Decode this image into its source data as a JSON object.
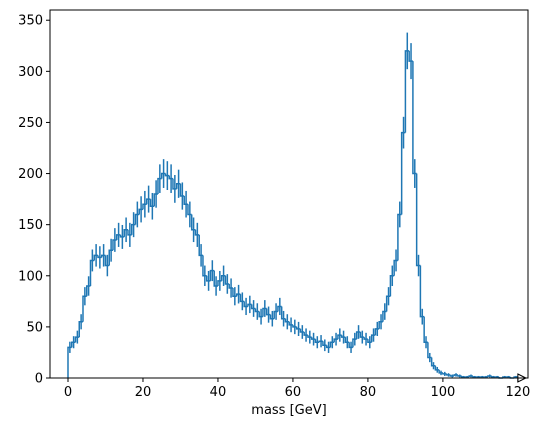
{
  "chart_data": {
    "type": "histogram",
    "xlabel": "mass [GeV]",
    "color": "#1f77b4",
    "bins": [
      0,
      1,
      2,
      3,
      4,
      5,
      6,
      7,
      8,
      9,
      10,
      11,
      12,
      13,
      14,
      15,
      16,
      17,
      18,
      19,
      20,
      21,
      22,
      23,
      24,
      25,
      26,
      27,
      28,
      29,
      30,
      31,
      32,
      33,
      34,
      35,
      36,
      37,
      38,
      39,
      40,
      41,
      42,
      43,
      44,
      45,
      46,
      47,
      48,
      49,
      50,
      51,
      52,
      53,
      54,
      55,
      56,
      57,
      58,
      59,
      60,
      61,
      62,
      63,
      64,
      65,
      66,
      67,
      68,
      69,
      70,
      71,
      72,
      73,
      74,
      75,
      76,
      77,
      78,
      79,
      80,
      81,
      82,
      83,
      84,
      85,
      86,
      87,
      88,
      89,
      90,
      91,
      92,
      93,
      94,
      95,
      96,
      97,
      98,
      99,
      100,
      101,
      102,
      103,
      104,
      105,
      106,
      107,
      108,
      109,
      110,
      111,
      112,
      113,
      114,
      115,
      116,
      117,
      118,
      119,
      120
    ],
    "values": [
      30,
      35,
      40,
      55,
      80,
      90,
      115,
      120,
      118,
      120,
      110,
      125,
      135,
      140,
      138,
      145,
      140,
      150,
      160,
      165,
      170,
      175,
      168,
      180,
      195,
      200,
      198,
      195,
      185,
      190,
      178,
      170,
      160,
      145,
      140,
      120,
      100,
      95,
      105,
      90,
      95,
      100,
      92,
      88,
      80,
      82,
      75,
      70,
      72,
      68,
      65,
      60,
      68,
      62,
      58,
      65,
      70,
      58,
      55,
      52,
      50,
      48,
      45,
      42,
      40,
      38,
      35,
      36,
      32,
      30,
      35,
      38,
      42,
      40,
      35,
      30,
      38,
      45,
      40,
      38,
      35,
      42,
      48,
      55,
      65,
      80,
      100,
      115,
      160,
      240,
      320,
      310,
      200,
      110,
      60,
      35,
      20,
      12,
      8,
      5,
      4,
      3,
      2,
      3,
      2,
      1,
      1,
      2,
      1,
      1,
      1,
      1,
      2,
      1,
      1,
      0,
      1,
      1,
      0,
      1
    ],
    "yerr": [
      5.5,
      5.9,
      6.3,
      7.4,
      8.9,
      9.5,
      10.7,
      11,
      10.9,
      11,
      10.5,
      11.2,
      11.6,
      11.8,
      11.7,
      12,
      11.8,
      12.2,
      12.6,
      12.8,
      13,
      13.2,
      13,
      13.4,
      14,
      14.1,
      14.1,
      14,
      13.6,
      13.8,
      13.3,
      13,
      12.6,
      12,
      11.8,
      11,
      10,
      9.7,
      10.2,
      9.5,
      9.7,
      10,
      9.6,
      9.4,
      8.9,
      9.1,
      8.7,
      8.4,
      8.5,
      8.2,
      8.1,
      7.7,
      8.2,
      7.9,
      7.6,
      8.1,
      8.4,
      7.6,
      7.4,
      7.2,
      7.1,
      6.9,
      6.7,
      6.5,
      6.3,
      6.2,
      5.9,
      6,
      5.7,
      5.5,
      5.9,
      6.2,
      6.5,
      6.3,
      5.9,
      5.5,
      6.2,
      6.7,
      6.3,
      6.2,
      5.9,
      6.5,
      6.9,
      7.4,
      8.1,
      8.9,
      10,
      10.7,
      12.6,
      15.5,
      17.9,
      17.6,
      14.1,
      10.5,
      7.7,
      5.9,
      4.5,
      3.5,
      2.8,
      2.2,
      2,
      1.7,
      1.4,
      1.7,
      1.4,
      1,
      1,
      1.4,
      1,
      1,
      1,
      1,
      1.4,
      1,
      1,
      0,
      1,
      1,
      0,
      1
    ],
    "xlim": [
      -4.8,
      122.7
    ],
    "ylim": [
      0,
      360
    ],
    "xticks": [
      0,
      20,
      40,
      60,
      80,
      100,
      120
    ],
    "yticks": [
      0,
      50,
      100,
      150,
      200,
      250,
      300,
      350
    ]
  }
}
